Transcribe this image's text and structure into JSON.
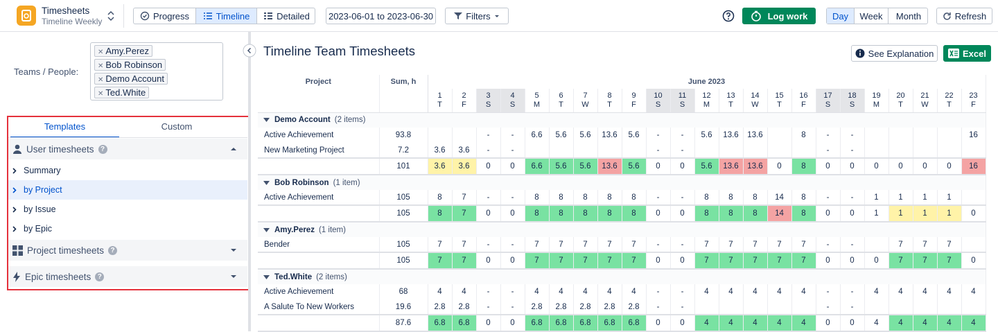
{
  "header": {
    "app_title": "Timesheets",
    "app_subtitle": "Timeline Weekly",
    "views": [
      "Progress",
      "Timeline",
      "Detailed"
    ],
    "active_view": 1,
    "date_range": "2023-06-01 to 2023-06-30",
    "filters": "Filters",
    "log_work": "Log work",
    "periods": [
      "Day",
      "Week",
      "Month"
    ],
    "active_period": 0,
    "refresh": "Refresh"
  },
  "sidebar": {
    "teams_label": "Teams / People:",
    "people": [
      "Amy.Perez",
      "Bob Robinson",
      "Demo Account",
      "Ted.White"
    ],
    "tabs": [
      "Templates",
      "Custom"
    ],
    "active_tab": 0,
    "sections": [
      {
        "title": "User timesheets",
        "expanded": true,
        "items": [
          "Summary",
          "by Project",
          "by Issue",
          "by Epic"
        ],
        "selected_item": 1
      },
      {
        "title": "Project timesheets",
        "expanded": false
      },
      {
        "title": "Epic timesheets",
        "expanded": false
      }
    ]
  },
  "main": {
    "title": "Timeline Team Timesheets",
    "see_explanation": "See Explanation",
    "excel": "Excel"
  },
  "table": {
    "project_header": "Project",
    "sum_header": "Sum, h",
    "month": "June 2023",
    "days": [
      {
        "day": 1,
        "weekday": "T",
        "weekend": false
      },
      {
        "day": 2,
        "weekday": "F",
        "weekend": false
      },
      {
        "day": 3,
        "weekday": "S",
        "weekend": true
      },
      {
        "day": 4,
        "weekday": "S",
        "weekend": true
      },
      {
        "day": 5,
        "weekday": "M",
        "weekend": false
      },
      {
        "day": 6,
        "weekday": "T",
        "weekend": false
      },
      {
        "day": 7,
        "weekday": "W",
        "weekend": false
      },
      {
        "day": 8,
        "weekday": "T",
        "weekend": false
      },
      {
        "day": 9,
        "weekday": "F",
        "weekend": false
      },
      {
        "day": 10,
        "weekday": "S",
        "weekend": true
      },
      {
        "day": 11,
        "weekday": "S",
        "weekend": true
      },
      {
        "day": 12,
        "weekday": "M",
        "weekend": false
      },
      {
        "day": 13,
        "weekday": "T",
        "weekend": false
      },
      {
        "day": 14,
        "weekday": "W",
        "weekend": false
      },
      {
        "day": 15,
        "weekday": "T",
        "weekend": false
      },
      {
        "day": 16,
        "weekday": "F",
        "weekend": false
      },
      {
        "day": 17,
        "weekday": "S",
        "weekend": true
      },
      {
        "day": 18,
        "weekday": "S",
        "weekend": true
      },
      {
        "day": 19,
        "weekday": "M",
        "weekend": false
      },
      {
        "day": 20,
        "weekday": "T",
        "weekend": false
      },
      {
        "day": 21,
        "weekday": "W",
        "weekend": false
      },
      {
        "day": 22,
        "weekday": "T",
        "weekend": false
      },
      {
        "day": 23,
        "weekday": "F",
        "weekend": false
      }
    ],
    "groups": [
      {
        "name": "Demo Account",
        "count_label": "(2 items)",
        "rows": [
          {
            "project": "Active Achievement",
            "sum": 93.8,
            "cells": [
              null,
              null,
              "-",
              "-",
              6.6,
              5.6,
              5.6,
              13.6,
              5.6,
              "-",
              "-",
              5.6,
              13.6,
              13.6,
              null,
              8,
              "-",
              "-",
              null,
              null,
              null,
              null,
              16
            ]
          },
          {
            "project": "New Marketing Project",
            "sum": 7.2,
            "cells": [
              3.6,
              3.6,
              "-",
              "-",
              null,
              null,
              null,
              null,
              null,
              "-",
              "-",
              null,
              null,
              null,
              null,
              null,
              "-",
              "-",
              null,
              null,
              null,
              null,
              null
            ]
          }
        ],
        "total": {
          "sum": 101,
          "cells": [
            3.6,
            3.6,
            0,
            0,
            6.6,
            5.6,
            5.6,
            13.6,
            5.6,
            0,
            0,
            5.6,
            13.6,
            13.6,
            0,
            8,
            0,
            0,
            0,
            0,
            0,
            0,
            16
          ],
          "highlights": [
            "yellow",
            "yellow",
            null,
            null,
            "green",
            "green",
            "green",
            "red",
            "green",
            null,
            null,
            "green",
            "red",
            "red",
            null,
            "green",
            null,
            null,
            null,
            null,
            null,
            null,
            "red"
          ]
        }
      },
      {
        "name": "Bob Robinson",
        "count_label": "(1 item)",
        "rows": [
          {
            "project": "Active Achievement",
            "sum": 105,
            "cells": [
              8,
              7,
              "-",
              "-",
              8,
              8,
              8,
              8,
              8,
              "-",
              "-",
              8,
              8,
              8,
              14,
              8,
              "-",
              "-",
              1,
              1,
              1,
              1,
              null
            ]
          }
        ],
        "total": {
          "sum": 105,
          "cells": [
            8,
            7,
            0,
            0,
            8,
            8,
            8,
            8,
            8,
            0,
            0,
            8,
            8,
            8,
            14,
            8,
            0,
            0,
            1,
            1,
            1,
            1,
            0
          ],
          "highlights": [
            "green",
            "green",
            null,
            null,
            "green",
            "green",
            "green",
            "green",
            "green",
            null,
            null,
            "green",
            "green",
            "green",
            "red",
            "green",
            null,
            null,
            null,
            "yellow",
            "yellow",
            "yellow",
            null
          ]
        }
      },
      {
        "name": "Amy.Perez",
        "count_label": "(1 item)",
        "rows": [
          {
            "project": "Bender",
            "sum": 105,
            "cells": [
              7,
              7,
              "-",
              "-",
              7,
              7,
              7,
              7,
              7,
              "-",
              "-",
              7,
              7,
              7,
              7,
              7,
              "-",
              "-",
              null,
              7,
              7,
              7,
              null
            ]
          }
        ],
        "total": {
          "sum": 105,
          "cells": [
            7,
            7,
            0,
            0,
            7,
            7,
            7,
            7,
            7,
            0,
            0,
            7,
            7,
            7,
            7,
            7,
            0,
            0,
            0,
            7,
            7,
            7,
            0
          ],
          "highlights": [
            "green",
            "green",
            null,
            null,
            "green",
            "green",
            "green",
            "green",
            "green",
            null,
            null,
            "green",
            "green",
            "green",
            "green",
            "green",
            null,
            null,
            null,
            "green",
            "green",
            "green",
            null
          ]
        }
      },
      {
        "name": "Ted.White",
        "count_label": "(2 items)",
        "rows": [
          {
            "project": "Active Achievement",
            "sum": 68,
            "cells": [
              4,
              4,
              "-",
              "-",
              4,
              4,
              4,
              4,
              4,
              "-",
              "-",
              4,
              4,
              4,
              4,
              4,
              "-",
              "-",
              4,
              4,
              4,
              4,
              4
            ]
          },
          {
            "project": "A Salute To New Workers",
            "sum": 19.6,
            "cells": [
              2.8,
              2.8,
              "-",
              "-",
              2.8,
              2.8,
              2.8,
              2.8,
              2.8,
              "-",
              "-",
              null,
              null,
              null,
              null,
              null,
              "-",
              "-",
              null,
              null,
              null,
              null,
              null
            ]
          }
        ],
        "total": {
          "sum": 87.6,
          "cells": [
            6.8,
            6.8,
            0,
            0,
            6.8,
            6.8,
            6.8,
            6.8,
            6.8,
            0,
            0,
            4,
            4,
            4,
            4,
            4,
            0,
            0,
            4,
            4,
            4,
            4,
            4
          ],
          "highlights": [
            "green",
            "green",
            null,
            null,
            "green",
            "green",
            "green",
            "green",
            "green",
            null,
            null,
            "green",
            "green",
            "green",
            "green",
            "green",
            null,
            null,
            null,
            "green",
            "green",
            "green",
            "green"
          ]
        }
      }
    ]
  }
}
